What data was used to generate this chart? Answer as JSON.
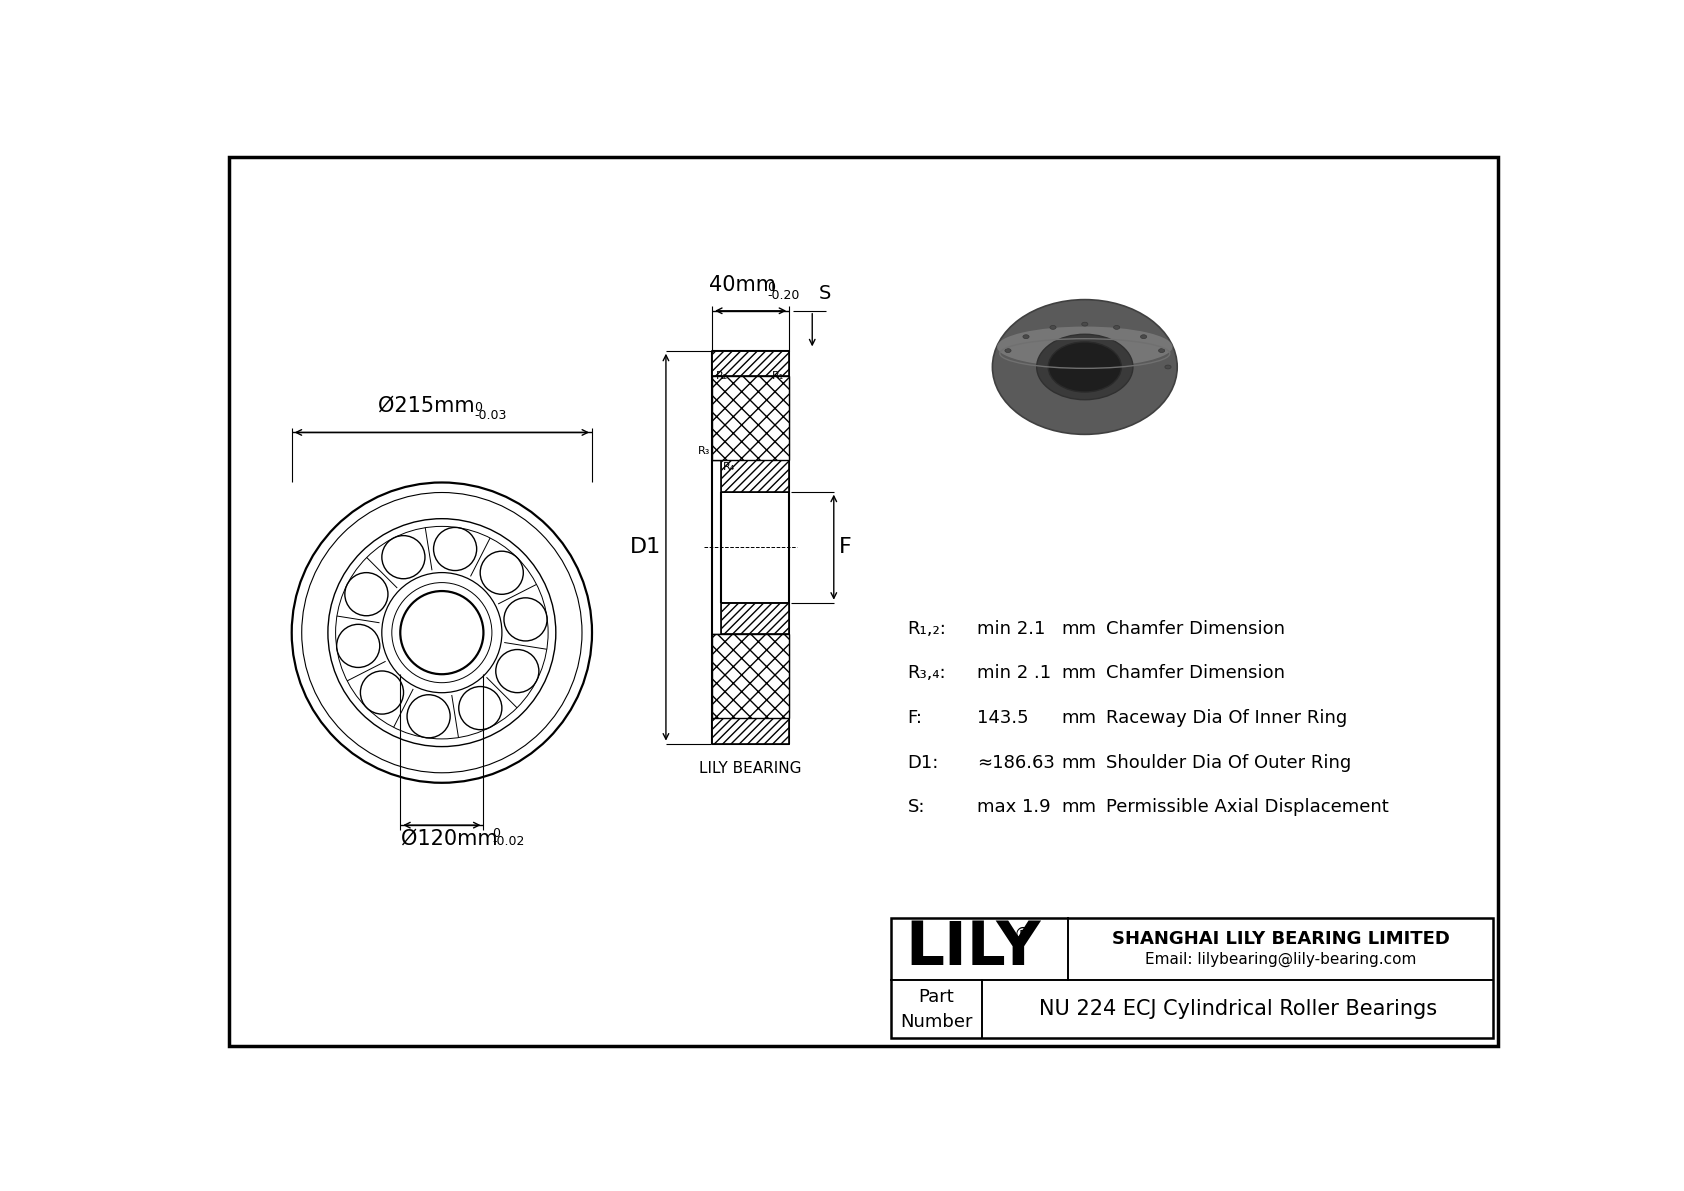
{
  "bg_color": "#ffffff",
  "params": [
    {
      "label": "R₁,₂:",
      "value": "min 2.1",
      "unit": "mm",
      "desc": "Chamfer Dimension"
    },
    {
      "label": "R₃,₄:",
      "value": "min 2 .1",
      "unit": "mm",
      "desc": "Chamfer Dimension"
    },
    {
      "label": "F:",
      "value": "143.5",
      "unit": "mm",
      "desc": "Raceway Dia Of Inner Ring"
    },
    {
      "label": "D1:",
      "value": "≈186.63",
      "unit": "mm",
      "desc": "Shoulder Dia Of Outer Ring"
    },
    {
      "label": "S:",
      "value": "max 1.9",
      "unit": "mm",
      "desc": "Permissible Axial Displacement"
    }
  ],
  "dim_outer_text": "Ø215mm",
  "dim_outer_tol_upper": "0",
  "dim_outer_tol_lower": "-0.03",
  "dim_width_text": "40mm",
  "dim_width_tol_upper": "0",
  "dim_width_tol_lower": "-0.20",
  "dim_inner_text": "Ø120mm",
  "dim_inner_tol_upper": "0",
  "dim_inner_tol_lower": "-0.02",
  "label_D1": "D1",
  "label_F": "F",
  "label_S": "S",
  "watermark": "LILY BEARING",
  "company": "SHANGHAI LILY BEARING LIMITED",
  "email": "Email: lilybearing@lily-bearing.com",
  "part_label": "Part\nNumber",
  "part_number": "NU 224 ECJ Cylindrical Roller Bearings",
  "lily_label": "LILY"
}
